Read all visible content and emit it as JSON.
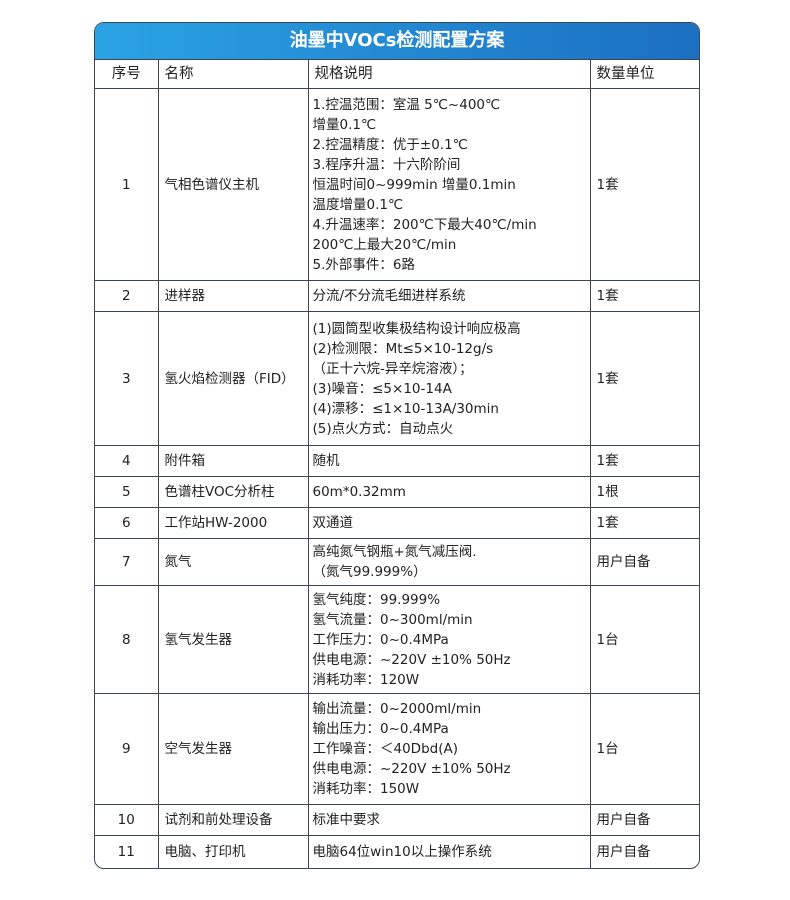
{
  "title": "油墨中VOCs检测配置方案",
  "headers": [
    "序号",
    "名称",
    "规格说明",
    "数量单位"
  ],
  "rows": [
    {
      "no": "1",
      "name": "气相色谱仪主机",
      "spec": [
        "1.控温范围：室温 5℃~400℃",
        "增量0.1℃",
        "2.控温精度：优于±0.1℃",
        "3.程序升温：十六阶阶间",
        "恒温时间0~999min 增量0.1min",
        "温度增量0.1℃",
        "4.升温速率：200℃下最大40℃/min",
        "200℃上最大20℃/min",
        "5.外部事件：6路"
      ],
      "qty": "1套"
    },
    {
      "no": "2",
      "name": "进样器",
      "spec": [
        "分流/不分流毛细进样系统"
      ],
      "qty": "1套"
    },
    {
      "no": "3",
      "name": "氢火焰检测器（FID）",
      "spec": [
        "(1)圆筒型收集极结构设计响应极高",
        "(2)检测限：Mt≤5×10-12g/s",
        "（正十六烷-异辛烷溶液）；",
        " (3)噪音：≤5×10-14A",
        "(4)漂移：≤1×10-13A/30min",
        "(5)点火方式：自动点火"
      ],
      "qty": "1套"
    },
    {
      "no": "4",
      "name": "附件箱",
      "spec": [
        "随机"
      ],
      "qty": "1套"
    },
    {
      "no": "5",
      "name": "色谱柱VOC分析柱",
      "spec": [
        "60m*0.32mm"
      ],
      "qty": "1根"
    },
    {
      "no": "6",
      "name": "工作站HW-2000",
      "spec": [
        "双通道"
      ],
      "qty": "1套"
    },
    {
      "no": "7",
      "name": "氮气",
      "spec": [
        "高纯氮气钢瓶+氮气减压阀.",
        "（氮气99.999%）"
      ],
      "qty": "用户自备"
    },
    {
      "no": "8",
      "name": "氢气发生器",
      "spec": [
        "氢气纯度：99.999%",
        "氢气流量：0~300ml/min",
        "工作压力：0~0.4MPa",
        "供电电源：~220V ±10% 50Hz",
        "消耗功率：120W"
      ],
      "qty": "1台"
    },
    {
      "no": "9",
      "name": "空气发生器",
      "spec": [
        "输出流量：0~2000ml/min",
        "输出压力：0~0.4MPa",
        "工作噪音：＜40Dbd(A)",
        "供电电源：~220V ±10% 50Hz",
        "消耗功率：150W"
      ],
      "qty": "1台"
    },
    {
      "no": "10",
      "name": "试剂和前处理设备",
      "spec": [
        "标准中要求"
      ],
      "qty": "用户自备"
    },
    {
      "no": "11",
      "name": "电脑、打印机",
      "spec": [
        "电脑64位win10以上操作系统"
      ],
      "qty": "用户自备"
    }
  ]
}
